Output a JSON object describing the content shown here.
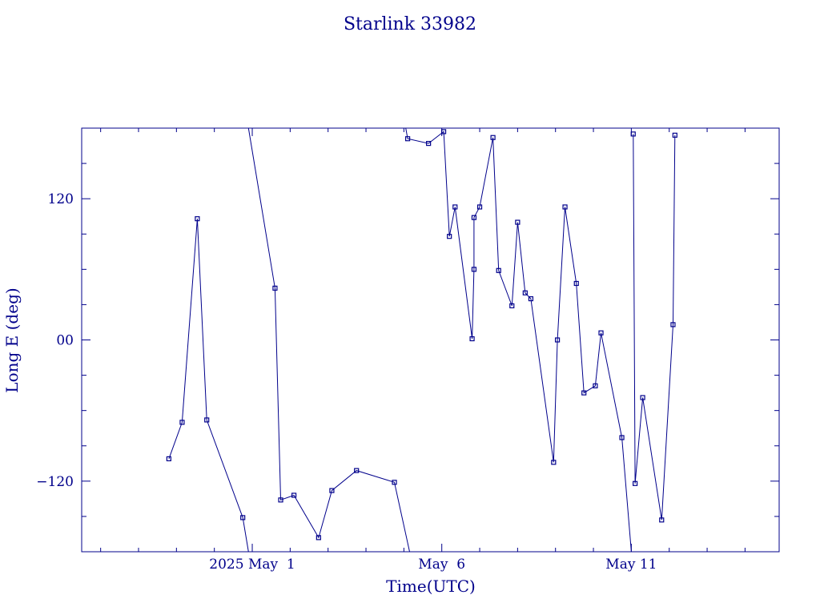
{
  "chart_data": {
    "type": "line",
    "title": "Starlink 33982",
    "xlabel": "Time(UTC)",
    "ylabel": "Long E (deg)",
    "x_ticks": [
      {
        "day": 1,
        "label": "2025 May  1"
      },
      {
        "day": 6,
        "label": "May  6"
      },
      {
        "day": 11,
        "label": "May 11"
      }
    ],
    "y_ticks": [
      {
        "value": 120,
        "label": "120"
      },
      {
        "value": 0,
        "label": "00"
      },
      {
        "value": -120,
        "label": "−120"
      }
    ],
    "xlim": [
      -3.5,
      14.9
    ],
    "ylim": [
      -180,
      180
    ],
    "grid": false,
    "color": "#00008b",
    "series": [
      {
        "x": -1.2,
        "y": -101
      },
      {
        "x": -0.85,
        "y": -70
      },
      {
        "x": -0.45,
        "y": 103
      },
      {
        "x": -0.2,
        "y": -68
      },
      {
        "x": 0.75,
        "y": -151
      },
      {
        "x": 0.9,
        "y": -180,
        "break": true
      },
      {
        "x": 0.9,
        "y": 180
      },
      {
        "x": 1.6,
        "y": 44
      },
      {
        "x": 1.75,
        "y": -136
      },
      {
        "x": 2.1,
        "y": -132
      },
      {
        "x": 2.75,
        "y": -168
      },
      {
        "x": 3.1,
        "y": -128
      },
      {
        "x": 3.75,
        "y": -111
      },
      {
        "x": 4.75,
        "y": -121
      },
      {
        "x": 5.15,
        "y": -180,
        "break": true
      },
      {
        "x": 5.05,
        "y": 180
      },
      {
        "x": 5.1,
        "y": 171
      },
      {
        "x": 5.65,
        "y": 167
      },
      {
        "x": 6.05,
        "y": 177
      },
      {
        "x": 6.2,
        "y": 88
      },
      {
        "x": 6.35,
        "y": 113
      },
      {
        "x": 6.8,
        "y": 1
      },
      {
        "x": 6.85,
        "y": 60
      },
      {
        "x": 6.85,
        "y": 104
      },
      {
        "x": 7.0,
        "y": 113
      },
      {
        "x": 7.35,
        "y": 172
      },
      {
        "x": 7.5,
        "y": 59
      },
      {
        "x": 7.85,
        "y": 29
      },
      {
        "x": 8.0,
        "y": 100
      },
      {
        "x": 8.2,
        "y": 40
      },
      {
        "x": 8.35,
        "y": 35
      },
      {
        "x": 8.95,
        "y": -104
      },
      {
        "x": 9.05,
        "y": 0
      },
      {
        "x": 9.25,
        "y": 113
      },
      {
        "x": 9.55,
        "y": 48
      },
      {
        "x": 9.75,
        "y": -45
      },
      {
        "x": 10.05,
        "y": -39
      },
      {
        "x": 10.2,
        "y": 6
      },
      {
        "x": 10.75,
        "y": -83
      },
      {
        "x": 11.0,
        "y": -180,
        "break": true
      },
      {
        "x": 11.05,
        "y": 175
      },
      {
        "x": 11.1,
        "y": -122
      },
      {
        "x": 11.3,
        "y": -49
      },
      {
        "x": 11.8,
        "y": -153
      },
      {
        "x": 12.1,
        "y": 13
      },
      {
        "x": 12.15,
        "y": 174
      }
    ]
  }
}
